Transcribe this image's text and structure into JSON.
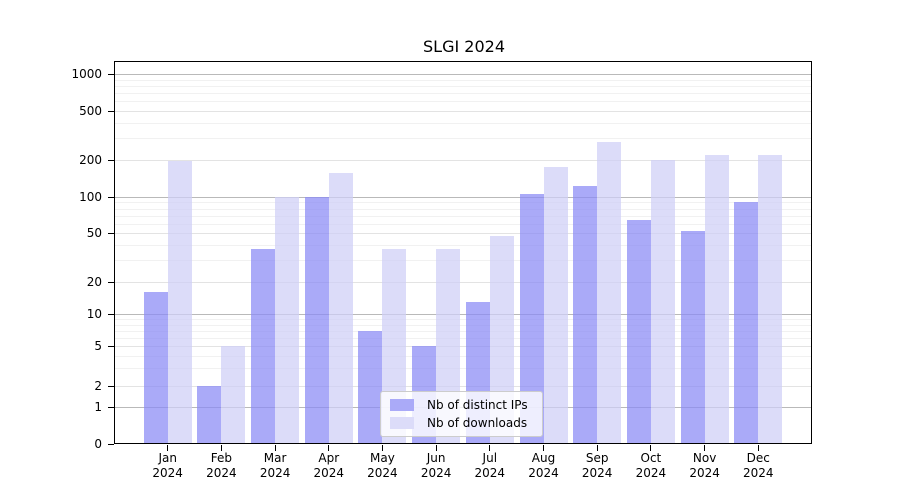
{
  "chart_data": {
    "type": "bar",
    "title": "SLGI 2024",
    "categories": [
      "Jan",
      "Feb",
      "Mar",
      "Apr",
      "May",
      "Jun",
      "Jul",
      "Aug",
      "Sep",
      "Oct",
      "Nov",
      "Dec"
    ],
    "year": "2024",
    "series": [
      {
        "name": "Nb of distinct IPs",
        "color": "#aaaaf8",
        "values": [
          16,
          2,
          37,
          100,
          7,
          5,
          13,
          106,
          122,
          64,
          52,
          90
        ]
      },
      {
        "name": "Nb of downloads",
        "color": "#dcdcf9",
        "values": [
          195,
          5,
          100,
          156,
          37,
          37,
          48,
          175,
          280,
          202,
          218,
          218
        ]
      }
    ],
    "xlabel": "",
    "ylabel": "",
    "yscale": "symlog",
    "yticks": [
      0,
      1,
      2,
      5,
      10,
      20,
      50,
      100,
      200,
      500,
      1000
    ],
    "ylim": [
      0,
      1300
    ],
    "grid": true,
    "legend_position": "lower center"
  }
}
